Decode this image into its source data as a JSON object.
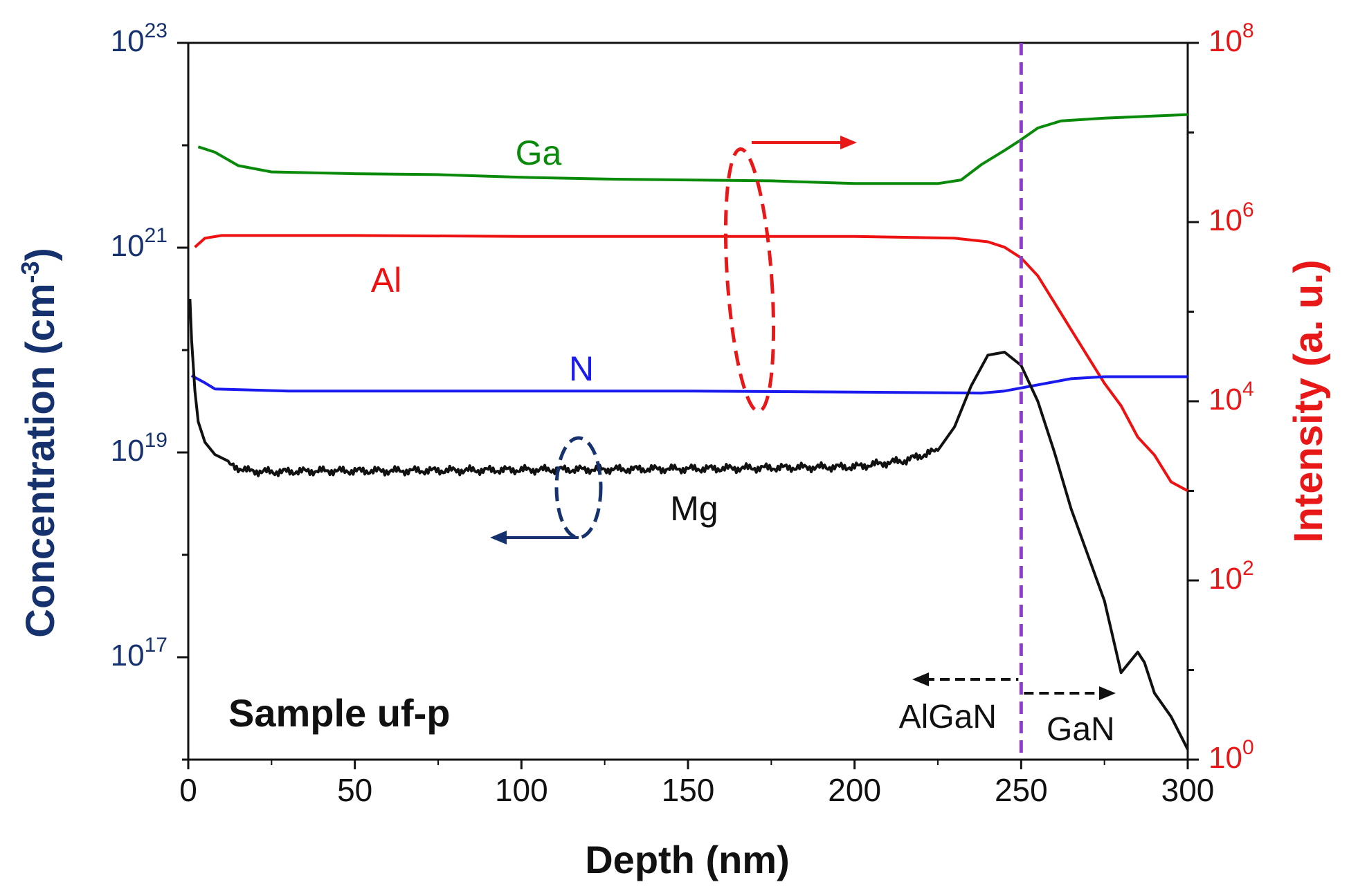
{
  "chart_data": {
    "type": "line",
    "title": "",
    "xlabel": "Depth (nm)",
    "ylabel_left": "Concentration (cm",
    "ylabel_left_sup": "-3",
    "ylabel_left_close": ")",
    "ylabel_right": "Intensity (a. u.)",
    "xlim": [
      0,
      300
    ],
    "ylim_left_log10": [
      16,
      23
    ],
    "ylim_right_log10": [
      0,
      8
    ],
    "x_ticks": [
      {
        "value": 0,
        "label": "0"
      },
      {
        "value": 50,
        "label": "50"
      },
      {
        "value": 100,
        "label": "100"
      },
      {
        "value": 150,
        "label": "150"
      },
      {
        "value": 200,
        "label": "200"
      },
      {
        "value": 250,
        "label": "250"
      },
      {
        "value": 300,
        "label": "300"
      }
    ],
    "y_left_ticks": [
      {
        "exp": 17,
        "base": "10",
        "sup": "17"
      },
      {
        "exp": 19,
        "base": "10",
        "sup": "19"
      },
      {
        "exp": 21,
        "base": "10",
        "sup": "21"
      },
      {
        "exp": 23,
        "base": "10",
        "sup": "23"
      }
    ],
    "y_right_ticks": [
      {
        "exp": 0,
        "base": "10",
        "sup": "0"
      },
      {
        "exp": 2,
        "base": "10",
        "sup": "2"
      },
      {
        "exp": 4,
        "base": "10",
        "sup": "4"
      },
      {
        "exp": 6,
        "base": "10",
        "sup": "6"
      },
      {
        "exp": 8,
        "base": "10",
        "sup": "8"
      }
    ],
    "series": [
      {
        "name": "Ga",
        "axis": "right",
        "color": "#0a8a0a",
        "x": [
          3,
          8,
          15,
          25,
          50,
          75,
          100,
          125,
          150,
          175,
          200,
          225,
          232,
          238,
          245,
          250,
          255,
          262,
          275,
          300
        ],
        "log10_intensity": [
          6.84,
          6.78,
          6.63,
          6.56,
          6.54,
          6.53,
          6.5,
          6.48,
          6.47,
          6.46,
          6.43,
          6.43,
          6.47,
          6.64,
          6.8,
          6.92,
          7.05,
          7.13,
          7.16,
          7.2
        ]
      },
      {
        "name": "Al",
        "axis": "right",
        "color": "#ee1111",
        "x": [
          2,
          5,
          10,
          50,
          100,
          150,
          200,
          230,
          240,
          245,
          250,
          255,
          260,
          265,
          270,
          275,
          280,
          285,
          290,
          295,
          300
        ],
        "log10_intensity": [
          5.72,
          5.82,
          5.85,
          5.85,
          5.84,
          5.84,
          5.84,
          5.82,
          5.78,
          5.72,
          5.6,
          5.4,
          5.1,
          4.8,
          4.5,
          4.2,
          3.95,
          3.6,
          3.4,
          3.1,
          3.0
        ]
      },
      {
        "name": "N",
        "axis": "left",
        "color": "#1a1aee",
        "x": [
          1,
          5,
          8,
          30,
          60,
          100,
          150,
          200,
          238,
          245,
          255,
          265,
          275,
          300
        ],
        "log10_concentration": [
          19.75,
          19.68,
          19.62,
          19.6,
          19.6,
          19.6,
          19.6,
          19.59,
          19.58,
          19.6,
          19.66,
          19.72,
          19.74,
          19.74
        ]
      },
      {
        "name": "Mg",
        "axis": "left",
        "color": "#111111",
        "x": [
          0.5,
          1,
          2,
          3,
          5,
          8,
          12,
          18,
          25,
          40,
          60,
          100,
          150,
          200,
          215,
          225,
          230,
          235,
          240,
          245,
          250,
          255,
          260,
          265,
          270,
          275,
          280,
          285,
          287,
          290,
          295,
          300
        ],
        "log10_concentration": [
          20.5,
          20.1,
          19.6,
          19.3,
          19.1,
          18.98,
          18.88,
          18.82,
          18.81,
          18.82,
          18.82,
          18.83,
          18.84,
          18.86,
          18.92,
          19.02,
          19.25,
          19.65,
          19.95,
          19.98,
          19.85,
          19.5,
          19.0,
          18.45,
          18.0,
          17.55,
          16.85,
          17.05,
          16.95,
          16.65,
          16.42,
          16.1
        ]
      }
    ],
    "annotations": {
      "label_ga": "Ga",
      "label_al": "Al",
      "label_n": "N",
      "label_mg": "Mg",
      "sample": "Sample uf-p",
      "algan": "AlGaN",
      "gan": "GaN",
      "interface_x": 250
    },
    "colors": {
      "left_axis": "#16326e",
      "right_axis": "#e81818",
      "interface_line": "#8a3dc8",
      "ga": "#0a8a0a",
      "al": "#ee1111",
      "n": "#1a1aee",
      "mg": "#111111"
    }
  }
}
